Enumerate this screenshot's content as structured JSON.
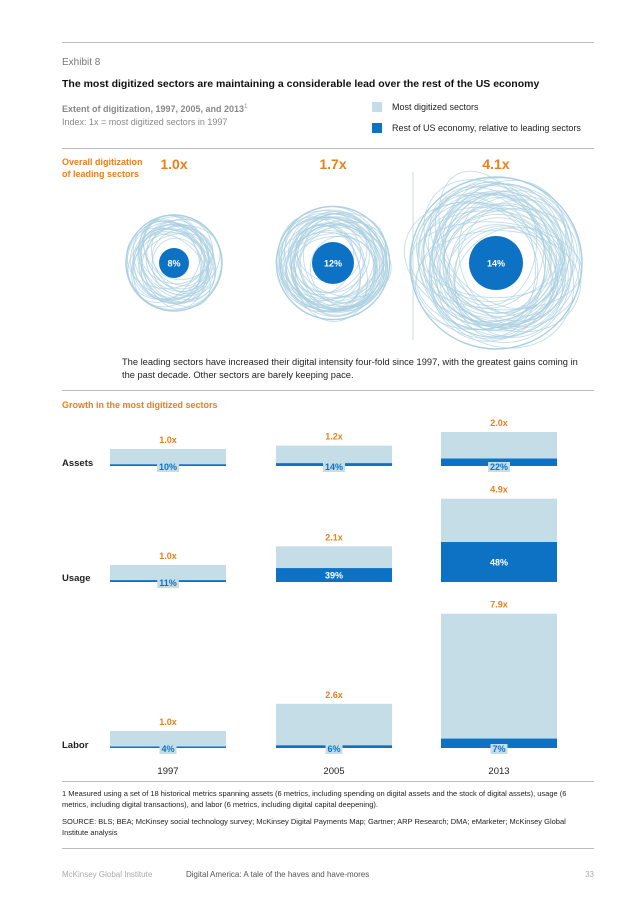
{
  "header": {
    "exhibit": "Exhibit 8",
    "title": "The most digitized sectors are maintaining a considerable lead over the rest of the US economy",
    "subtitle_main": "Extent of digitization, 1997, 2005, and 2013",
    "subtitle_note": "1",
    "subtitle_index": "Index: 1x = most digitized sectors in 1997"
  },
  "legend": [
    {
      "label": "Most digitized sectors",
      "color": "#c5dde6"
    },
    {
      "label": "Rest of US economy, relative to leading sectors",
      "color": "#0e72c4"
    }
  ],
  "overall": {
    "heading": "Overall digitization of leading sectors",
    "description": "The leading sectors have increased their digital intensity four-fold since 1997, with the greatest gains coming in the past decade. Other sectors are barely keeping pace."
  },
  "growth_heading": "Growth in the most digitized sectors",
  "colors": {
    "light": "#c5dde6",
    "dark": "#0e72c4",
    "orange": "#ee7d1a",
    "scribble": "#a9cfe0"
  },
  "chart_data": [
    {
      "type": "bubble",
      "categories": [
        "1997",
        "2005",
        "2013"
      ],
      "leading_multiple": [
        1.0,
        1.7,
        4.1
      ],
      "leading_multiple_labels": [
        "1.0x",
        "1.7x",
        "4.1x"
      ],
      "rest_share_labels": [
        "8%",
        "12%",
        "14%"
      ]
    },
    {
      "type": "bar",
      "categories": [
        "1997",
        "2005",
        "2013"
      ],
      "rows": [
        {
          "name": "Assets",
          "multiples": [
            1.0,
            1.2,
            2.0
          ],
          "multiple_labels": [
            "1.0x",
            "1.2x",
            "2.0x"
          ],
          "rest_share": [
            10,
            14,
            22
          ],
          "rest_labels": [
            "10%",
            "14%",
            "22%"
          ]
        },
        {
          "name": "Usage",
          "multiples": [
            1.0,
            2.1,
            4.9
          ],
          "multiple_labels": [
            "1.0x",
            "2.1x",
            "4.9x"
          ],
          "rest_share": [
            11,
            39,
            48
          ],
          "rest_labels": [
            "11%",
            "39%",
            "48%"
          ]
        },
        {
          "name": "Labor",
          "multiples": [
            1.0,
            2.6,
            7.9
          ],
          "multiple_labels": [
            "1.0x",
            "2.6x",
            "7.9x"
          ],
          "rest_share": [
            4,
            6,
            7
          ],
          "rest_labels": [
            "4%",
            "6%",
            "7%"
          ]
        }
      ]
    }
  ],
  "footnote": "1  Measured using a set of 18 historical metrics spanning assets (6 metrics, including spending on digital assets and the stock of digital assets), usage (6 metrics, including digital transactions), and labor (6 metrics, including digital capital deepening).",
  "source": "SOURCE:  BLS; BEA; McKinsey social technology survey; McKinsey Digital Payments Map; Gartner; ARP Research; DMA; eMarketer; McKinsey Global Institute analysis",
  "footer": {
    "publisher": "McKinsey Global Institute",
    "report": "Digital America: A tale of the haves and have-mores",
    "page": "33"
  }
}
